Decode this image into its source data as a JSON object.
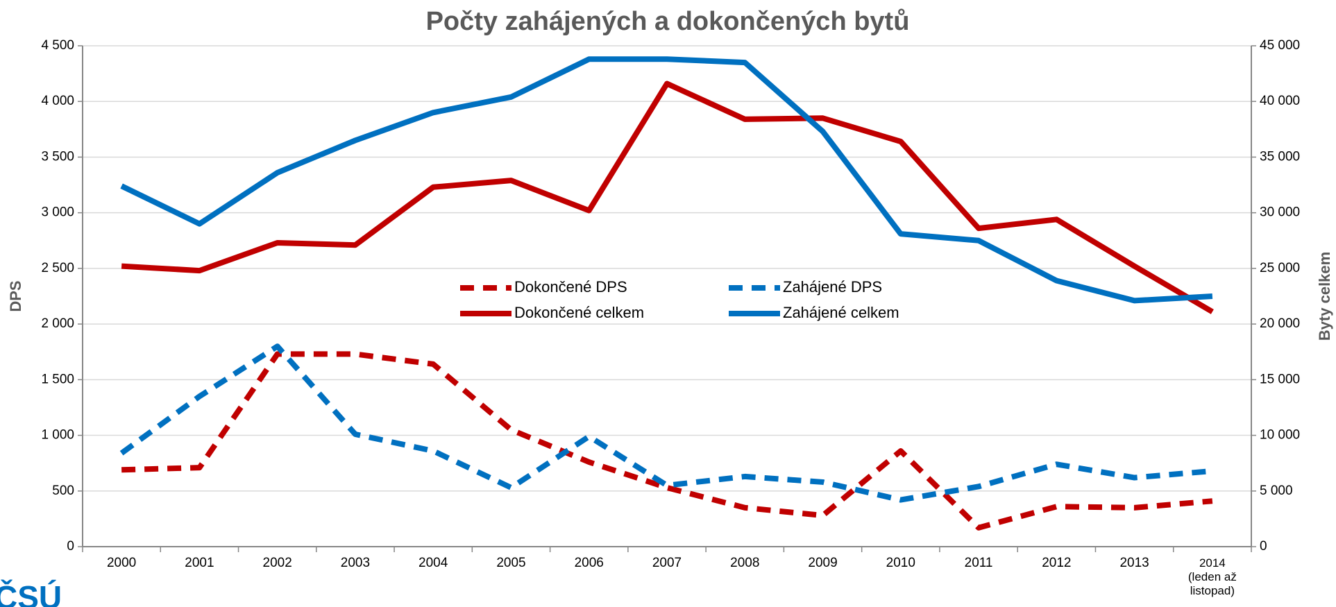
{
  "chart_data": {
    "type": "line",
    "title": "Počty zahájených a dokončených bytů",
    "ylabel": "DPS",
    "y2label": "Byty celkem",
    "logo": "ČSÚ",
    "categories": [
      "2000",
      "2001",
      "2002",
      "2003",
      "2004",
      "2005",
      "2006",
      "2007",
      "2008",
      "2009",
      "2010",
      "2011",
      "2012",
      "2013",
      "2014 (leden až listopad)"
    ],
    "series": [
      {
        "name": "Dokončené DPS",
        "color": "#c00000",
        "dashed": true,
        "axis": "y",
        "values": [
          690,
          710,
          1730,
          1730,
          1640,
          1050,
          760,
          530,
          350,
          280,
          860,
          170,
          360,
          350,
          410
        ]
      },
      {
        "name": "Zahájené DPS",
        "color": "#0070c0",
        "dashed": true,
        "axis": "y",
        "values": [
          840,
          1350,
          1800,
          1010,
          860,
          530,
          990,
          550,
          630,
          580,
          420,
          540,
          740,
          620,
          680
        ]
      },
      {
        "name": "Dokončené celkem",
        "color": "#c00000",
        "dashed": false,
        "axis": "y2",
        "values": [
          25200,
          24800,
          27300,
          27100,
          32300,
          32900,
          30200,
          41600,
          38400,
          38500,
          36400,
          28600,
          29400,
          25200,
          21100
        ]
      },
      {
        "name": "Zahájené celkem",
        "color": "#0070c0",
        "dashed": false,
        "axis": "y2",
        "values": [
          32400,
          29000,
          33600,
          36500,
          39000,
          40400,
          43800,
          43800,
          43500,
          37300,
          28100,
          27500,
          23900,
          22100,
          22500
        ]
      }
    ],
    "ylim": [
      0,
      4500
    ],
    "yticks": [
      0,
      500,
      {
        "value": 1000,
        "label": "1 000"
      },
      {
        "value": 1500,
        "label": "1 500"
      },
      {
        "value": 2000,
        "label": "2 000"
      },
      {
        "value": 2500,
        "label": "2 500"
      },
      {
        "value": 3000,
        "label": "3 000"
      },
      {
        "value": 3500,
        "label": "3 500"
      },
      {
        "value": 4000,
        "label": "4 000"
      },
      {
        "value": 4500,
        "label": "4 500"
      }
    ],
    "y2lim": [
      0,
      45000
    ],
    "y2ticks": [
      0,
      {
        "value": 5000,
        "label": "5 000"
      },
      {
        "value": 10000,
        "label": "10 000"
      },
      {
        "value": 15000,
        "label": "15 000"
      },
      {
        "value": 20000,
        "label": "20 000"
      },
      {
        "value": 25000,
        "label": "25 000"
      },
      {
        "value": 30000,
        "label": "30 000"
      },
      {
        "value": 35000,
        "label": "35 000"
      },
      {
        "value": 40000,
        "label": "40 000"
      },
      {
        "value": 45000,
        "label": "45 000"
      }
    ],
    "grid": true
  }
}
